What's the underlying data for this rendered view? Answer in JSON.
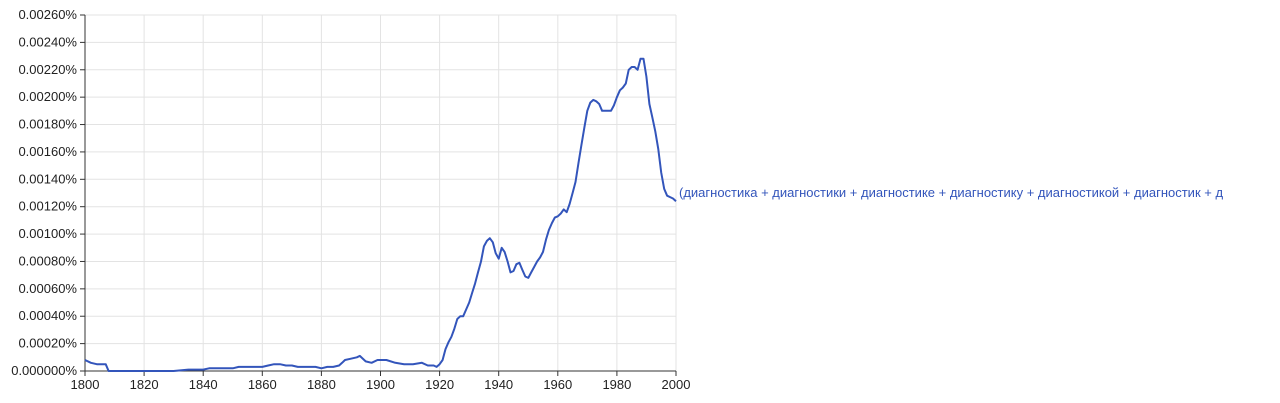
{
  "colors": {
    "series_line": "#3355bb",
    "grid": "#e3e3e3",
    "axis": "#333333",
    "background": "#ffffff"
  },
  "chart_data": {
    "type": "line",
    "title": "",
    "xlabel": "",
    "ylabel": "",
    "xlim": [
      1800,
      2000
    ],
    "ylim": [
      0,
      0.0026
    ],
    "grid": true,
    "legend": "inline-right",
    "x_ticks": [
      "1800",
      "1820",
      "1840",
      "1860",
      "1880",
      "1900",
      "1920",
      "1940",
      "1960",
      "1980",
      "2000"
    ],
    "y_ticks": [
      "0.000000%",
      "0.00020%",
      "0.00040%",
      "0.00060%",
      "0.00080%",
      "0.00100%",
      "0.00120%",
      "0.00140%",
      "0.00160%",
      "0.00180%",
      "0.00200%",
      "0.00220%",
      "0.00240%",
      "0.00260%"
    ],
    "series": [
      {
        "name": "(диагностика + диагностики + диагностике + диагностику + диагностикой + диагностик + д",
        "x": [
          1800,
          1802,
          1804,
          1806,
          1807,
          1808,
          1810,
          1820,
          1830,
          1835,
          1840,
          1842,
          1845,
          1848,
          1850,
          1852,
          1855,
          1857,
          1860,
          1862,
          1864,
          1866,
          1868,
          1870,
          1872,
          1875,
          1878,
          1880,
          1882,
          1884,
          1886,
          1887,
          1888,
          1890,
          1892,
          1893,
          1895,
          1897,
          1899,
          1902,
          1905,
          1908,
          1911,
          1914,
          1916,
          1918,
          1919,
          1920,
          1921,
          1922,
          1923,
          1924,
          1925,
          1926,
          1927,
          1928,
          1929,
          1930,
          1931,
          1932,
          1933,
          1934,
          1935,
          1936,
          1937,
          1938,
          1939,
          1940,
          1941,
          1942,
          1943,
          1944,
          1945,
          1946,
          1947,
          1948,
          1949,
          1950,
          1951,
          1952,
          1953,
          1954,
          1955,
          1956,
          1957,
          1958,
          1959,
          1960,
          1961,
          1962,
          1963,
          1964,
          1965,
          1966,
          1967,
          1968,
          1969,
          1970,
          1971,
          1972,
          1973,
          1974,
          1975,
          1976,
          1977,
          1978,
          1979,
          1980,
          1981,
          1982,
          1983,
          1984,
          1985,
          1986,
          1987,
          1988,
          1989,
          1990,
          1991,
          1992,
          1993,
          1994,
          1995,
          1996,
          1997,
          1998,
          1999,
          2000
        ],
        "y": [
          8e-05,
          6e-05,
          5e-05,
          5e-05,
          5e-05,
          0.0,
          0.0,
          0.0,
          0.0,
          1e-05,
          1e-05,
          2e-05,
          2e-05,
          2e-05,
          2e-05,
          3e-05,
          3e-05,
          3e-05,
          3e-05,
          4e-05,
          5e-05,
          5e-05,
          4e-05,
          4e-05,
          3e-05,
          3e-05,
          3e-05,
          2e-05,
          3e-05,
          3e-05,
          4e-05,
          6e-05,
          8e-05,
          9e-05,
          0.0001,
          0.00011,
          7e-05,
          6e-05,
          8e-05,
          8e-05,
          6e-05,
          5e-05,
          5e-05,
          6e-05,
          4e-05,
          4e-05,
          3e-05,
          5e-05,
          8e-05,
          0.00016,
          0.00021,
          0.00025,
          0.00031,
          0.00038,
          0.0004,
          0.0004,
          0.00045,
          0.0005,
          0.00057,
          0.00064,
          0.00072,
          0.0008,
          0.00091,
          0.00095,
          0.00097,
          0.00094,
          0.00086,
          0.00082,
          0.0009,
          0.00087,
          0.0008,
          0.00072,
          0.00073,
          0.00078,
          0.00079,
          0.00074,
          0.00069,
          0.00068,
          0.00072,
          0.00076,
          0.0008,
          0.00083,
          0.00087,
          0.00096,
          0.00103,
          0.00108,
          0.00112,
          0.00113,
          0.00115,
          0.00118,
          0.00116,
          0.00122,
          0.0013,
          0.00138,
          0.00152,
          0.00165,
          0.00178,
          0.0019,
          0.00196,
          0.00198,
          0.00197,
          0.00195,
          0.0019,
          0.0019,
          0.0019,
          0.0019,
          0.00194,
          0.002,
          0.00205,
          0.00207,
          0.0021,
          0.0022,
          0.00222,
          0.00222,
          0.0022,
          0.00228,
          0.00228,
          0.00215,
          0.00195,
          0.00185,
          0.00175,
          0.00162,
          0.00145,
          0.00133,
          0.00128,
          0.00127,
          0.00126,
          0.00124
        ]
      }
    ]
  }
}
